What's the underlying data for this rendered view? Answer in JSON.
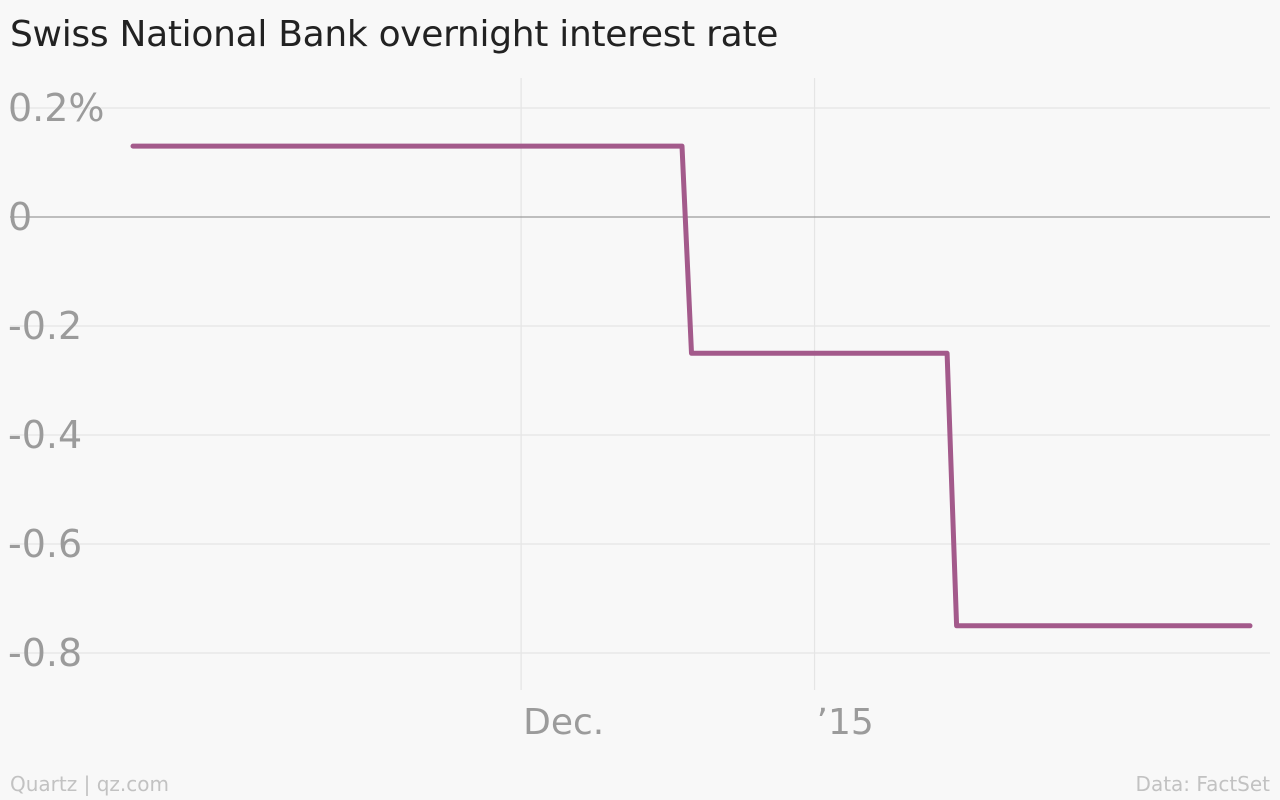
{
  "chart_data": {
    "type": "line",
    "title": "Swiss National Bank overnight interest rate",
    "xlabel": "",
    "ylabel": "",
    "y_ticks": [
      "0.2%",
      "0",
      "-0.2",
      "-0.4",
      "-0.6",
      "-0.8"
    ],
    "y_tick_values": [
      0.2,
      0,
      -0.2,
      -0.4,
      -0.6,
      -0.8
    ],
    "x_ticks": [
      "Dec.",
      "’15"
    ],
    "x_tick_values": [
      "2014-12-01",
      "2015-01-01"
    ],
    "xlim": [
      "2014-10-21",
      "2015-02-16"
    ],
    "ylim": [
      -0.92,
      0.28
    ],
    "grid": true,
    "series": [
      {
        "color": "#a35a8b",
        "points": [
          {
            "x": "2014-10-21",
            "y": 0.13
          },
          {
            "x": "2014-12-18",
            "y": 0.13
          },
          {
            "x": "2014-12-19",
            "y": -0.25
          },
          {
            "x": "2015-01-15",
            "y": -0.25
          },
          {
            "x": "2015-01-16",
            "y": -0.75
          },
          {
            "x": "2015-02-16",
            "y": -0.75
          }
        ]
      }
    ],
    "colors": {
      "background": "#f8f8f8",
      "grid": "#e5e5e5",
      "zero_line": "#9a9a9a",
      "tick_text": "#9b9b9b",
      "title_text": "#222222",
      "footer_text": "#c2c2c2"
    }
  },
  "footer": {
    "credit": "Quartz | qz.com",
    "source": "Data: FactSet"
  }
}
